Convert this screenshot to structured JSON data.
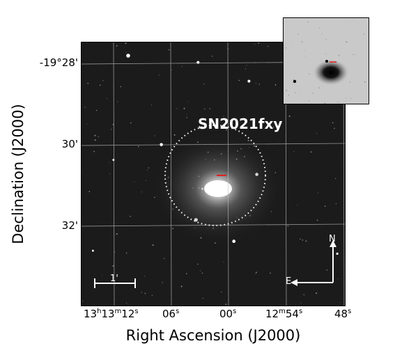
{
  "figure": {
    "object_name": "SN2021fxy",
    "x_axis_label": "Right Ascension (J2000)",
    "y_axis_label": "Declination (J2000)",
    "ra_ticks": [
      {
        "h": "13",
        "hu": "h",
        "m": "13",
        "mu": "m",
        "s": "12",
        "su": "s"
      },
      {
        "s": "06",
        "su": "s"
      },
      {
        "s": "00",
        "su": "s"
      },
      {
        "m": "12",
        "mu": "m",
        "s": "54",
        "su": "s"
      },
      {
        "s": "48",
        "su": "s"
      }
    ],
    "dec_ticks": [
      "-19°28'",
      "30'",
      "32'"
    ],
    "scale_bar_label": "1'",
    "compass": {
      "north": "N",
      "east": "E"
    },
    "colors": {
      "marker": "#e02020",
      "background": "#1b1b1b",
      "grid": "#bfbfbf",
      "overlay": "#ffffff"
    }
  }
}
